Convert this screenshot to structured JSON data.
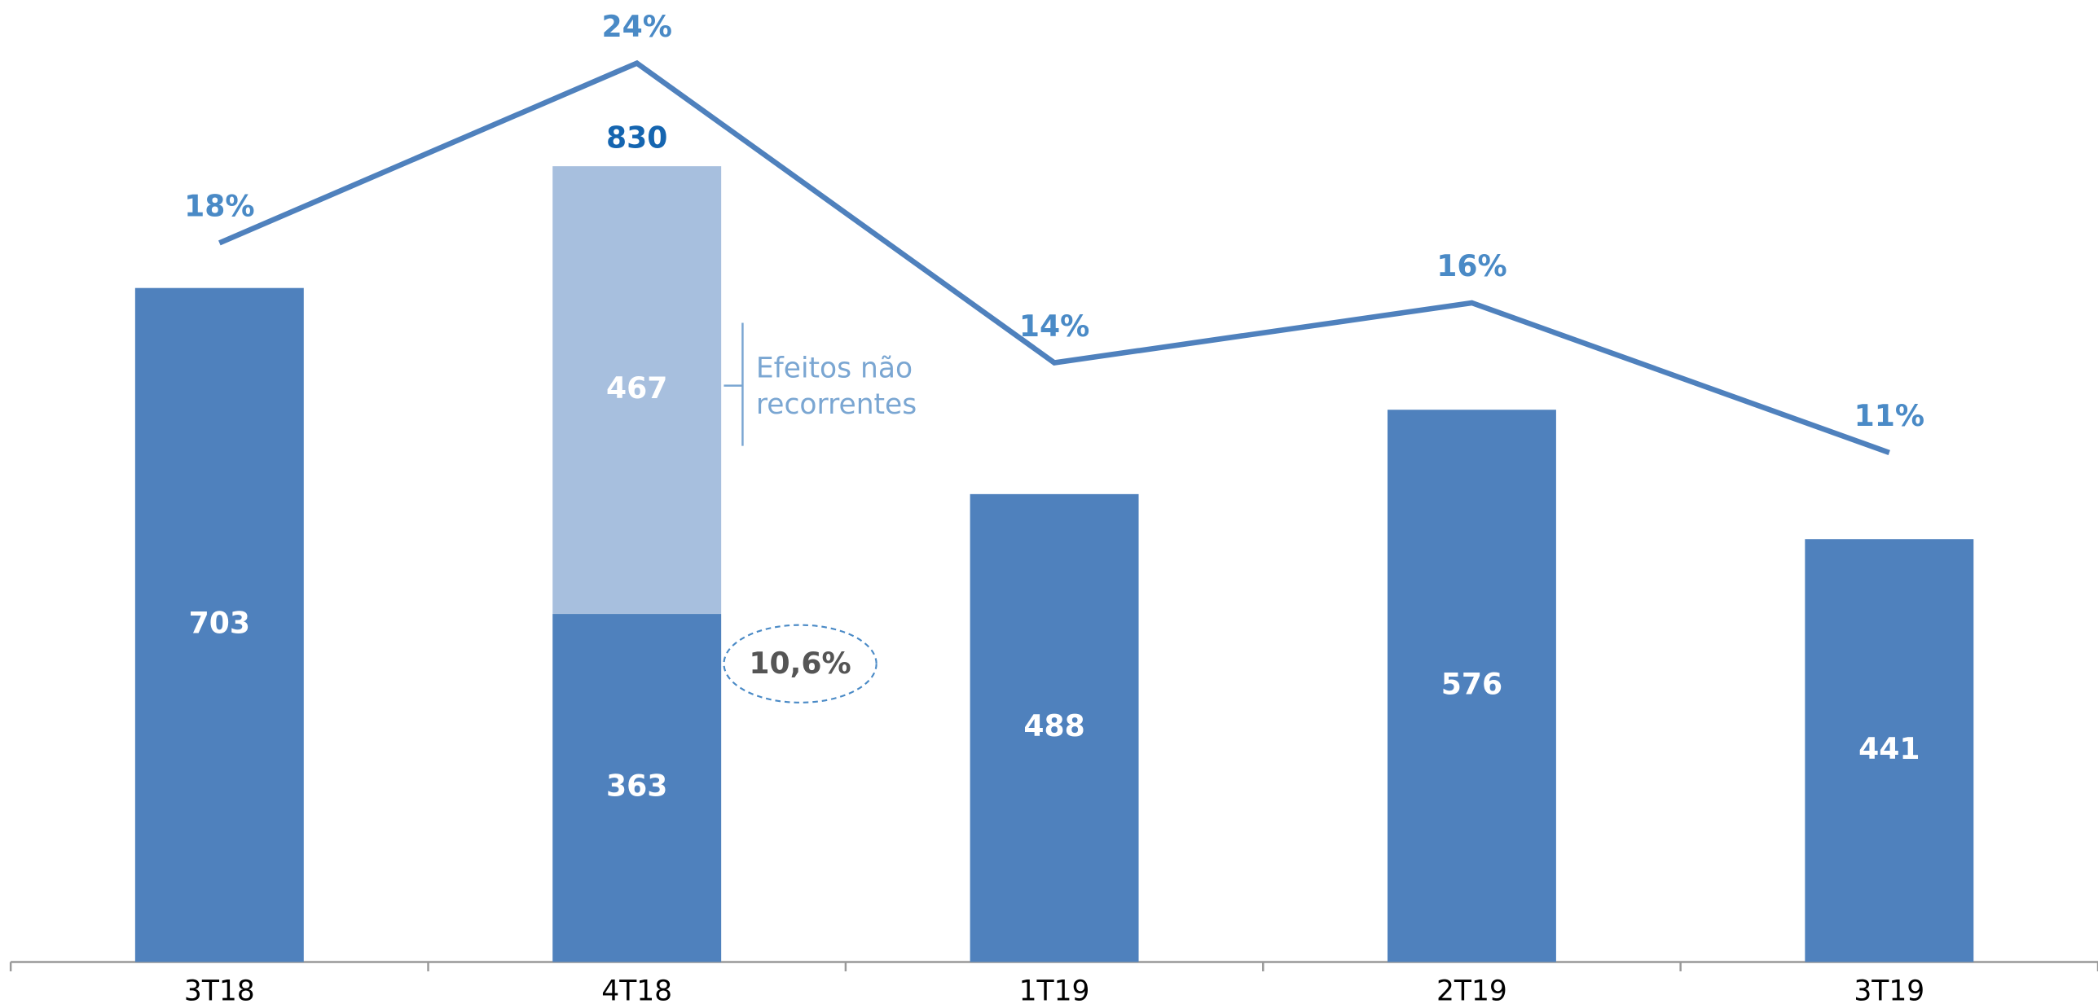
{
  "chart_data": {
    "type": "bar",
    "categories": [
      "3T18",
      "4T18",
      "1T19",
      "2T19",
      "3T19"
    ],
    "series": [
      {
        "color": "#4f81bd",
        "values": [
          703,
          363,
          488,
          576,
          441
        ]
      },
      {
        "color": "#a7bfde",
        "values": [
          null,
          467,
          null,
          null,
          null
        ]
      },
      {
        "type": "line",
        "axis": "y2",
        "color": "#4f81bd",
        "values": [
          18,
          24,
          14,
          16,
          11
        ],
        "value_labels": [
          "18%",
          "24%",
          "14%",
          "16%",
          "11%"
        ]
      }
    ],
    "totals": [
      null,
      830,
      null,
      null,
      null
    ],
    "ylim": [
      0,
      1000
    ],
    "y2lim": [
      -6,
      26
    ],
    "annotations": {
      "bracket_lines": [
        "Efeitos não",
        "recorrentes"
      ],
      "circled": "10,6%"
    }
  }
}
